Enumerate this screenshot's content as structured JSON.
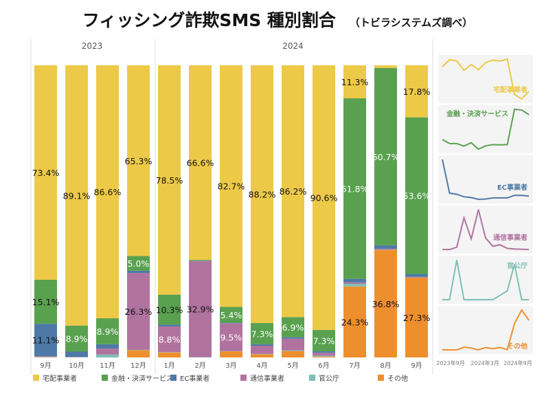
{
  "title": "フィッシング詐欺SMS 種別割合",
  "subtitle": "（トビラシステムズ調べ）",
  "chart_data": {
    "type": "bar",
    "stacked": true,
    "years": [
      {
        "label": "2023",
        "span": 4
      },
      {
        "label": "2024",
        "span": 9
      }
    ],
    "categories": [
      "9月",
      "10月",
      "11月",
      "12月",
      "1月",
      "2月",
      "3月",
      "4月",
      "5月",
      "6月",
      "7月",
      "8月",
      "9月"
    ],
    "ylim": [
      0,
      100
    ],
    "series": [
      {
        "name": "その他",
        "color": "#EE8F2E",
        "values": [
          0.1,
          0,
          0,
          2.5,
          1.7,
          0,
          2.1,
          1.1,
          2.2,
          0.3,
          24.3,
          36.8,
          27.3
        ]
      },
      {
        "name": "官公庁",
        "color": "#7DBFB6",
        "values": [
          0.1,
          0.1,
          1.0,
          0.1,
          0.1,
          0.1,
          0.1,
          0.1,
          0.2,
          0.3,
          0.9,
          0.1,
          0.1
        ]
      },
      {
        "name": "通信事業者",
        "color": "#B0739F",
        "values": [
          0.2,
          0.1,
          2.0,
          26.3,
          8.8,
          32.9,
          9.5,
          2.8,
          4.0,
          1.0,
          0.5,
          0.3,
          0.2
        ]
      },
      {
        "name": "EC事業者",
        "color": "#4E79A7",
        "values": [
          11.1,
          1.8,
          1.5,
          0.8,
          0.6,
          0.1,
          0.2,
          0.5,
          0.5,
          0.5,
          1.2,
          1.2,
          1.0
        ]
      },
      {
        "name": "金融・決済サービス",
        "color": "#59A14F",
        "values": [
          15.1,
          8.9,
          8.9,
          5.0,
          10.3,
          0.3,
          5.4,
          7.3,
          6.9,
          7.3,
          61.8,
          60.7,
          53.6
        ]
      },
      {
        "name": "宅配事業者",
        "color": "#EDC948",
        "values": [
          73.4,
          89.1,
          86.6,
          65.3,
          78.5,
          66.6,
          82.7,
          88.2,
          86.2,
          90.6,
          11.3,
          0.9,
          17.8
        ]
      }
    ],
    "sparkline_order": [
      "宅配事業者",
      "金融・決済サービス",
      "EC事業者",
      "通信事業者",
      "官公庁",
      "その他"
    ],
    "sparkline_xticks": [
      "2023年9月",
      "2024年3月",
      "2024年9月"
    ],
    "legend_placement": "bottom",
    "legend_order": [
      "宅配事業者",
      "金融・決済サービス",
      "EC事業者",
      "通信事業者",
      "官公庁",
      "その他"
    ]
  }
}
